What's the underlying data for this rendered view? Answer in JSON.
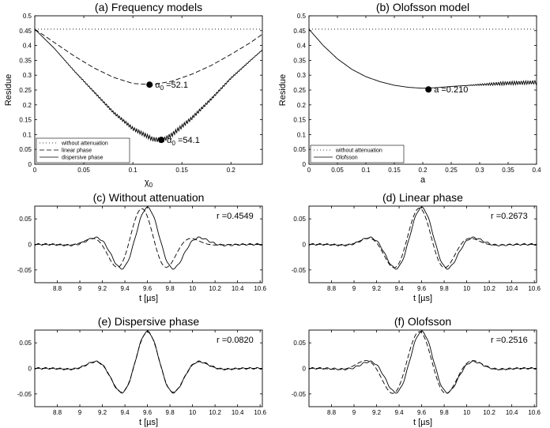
{
  "chart_data": [
    {
      "id": "a",
      "type": "line",
      "title": "(a) Frequency models",
      "xlabel": "χ0",
      "ylabel": "Residue",
      "xlim": [
        0,
        0.232
      ],
      "ylim": [
        0,
        0.5
      ],
      "xticks": [
        0,
        0.05,
        0.1,
        0.15,
        0.2
      ],
      "xtick_labels": [
        "0",
        "0.05",
        "0.1",
        "0.15",
        "0.2"
      ],
      "yticks": [
        0,
        0.05,
        0.1,
        0.15,
        0.2,
        0.25,
        0.3,
        0.35,
        0.4,
        0.45,
        0.5
      ],
      "ytick_labels": [
        "0",
        "0.05",
        "0.1",
        "0.15",
        "0.2",
        "0.25",
        "0.3",
        "0.35",
        "0.4",
        "0.45",
        "0.5"
      ],
      "legend": {
        "placement": "bottom-left",
        "entries": [
          "without attenuation",
          "linear phase",
          "dispersive phase"
        ]
      },
      "series": [
        {
          "name": "without attenuation",
          "style": "dotted",
          "x": [
            0,
            0.232
          ],
          "y": [
            0.455,
            0.455
          ]
        },
        {
          "name": "linear phase",
          "style": "dashed",
          "x": [
            0,
            0.02,
            0.04,
            0.06,
            0.08,
            0.1,
            0.12,
            0.14,
            0.16,
            0.18,
            0.2,
            0.22,
            0.232
          ],
          "y": [
            0.455,
            0.41,
            0.365,
            0.325,
            0.293,
            0.272,
            0.268,
            0.28,
            0.303,
            0.333,
            0.37,
            0.41,
            0.438
          ]
        },
        {
          "name": "dispersive phase",
          "style": "solid",
          "ripple": true,
          "x": [
            0,
            0.02,
            0.04,
            0.06,
            0.08,
            0.1,
            0.12,
            0.13,
            0.14,
            0.16,
            0.18,
            0.2,
            0.22,
            0.232
          ],
          "y": [
            0.455,
            0.39,
            0.315,
            0.245,
            0.175,
            0.12,
            0.085,
            0.08,
            0.1,
            0.155,
            0.22,
            0.29,
            0.35,
            0.385
          ]
        }
      ],
      "markers": [
        {
          "x": 0.117,
          "y": 0.268,
          "label": "α0 =52.1"
        },
        {
          "x": 0.129,
          "y": 0.082,
          "label": "α0 =54.1"
        }
      ]
    },
    {
      "id": "b",
      "type": "line",
      "title": "(b) Olofsson model",
      "xlabel": "a",
      "ylabel": "Residue",
      "xlim": [
        0,
        0.4
      ],
      "ylim": [
        0,
        0.5
      ],
      "xticks": [
        0,
        0.05,
        0.1,
        0.15,
        0.2,
        0.25,
        0.3,
        0.35,
        0.4
      ],
      "xtick_labels": [
        "0",
        "0.05",
        "0.1",
        "0.15",
        "0.2",
        "0.25",
        "0.3",
        "0.35",
        "0.4"
      ],
      "yticks": [
        0,
        0.05,
        0.1,
        0.15,
        0.2,
        0.25,
        0.3,
        0.35,
        0.4,
        0.45,
        0.5
      ],
      "ytick_labels": [
        "0",
        "0.05",
        "0.1",
        "0.15",
        "0.2",
        "0.25",
        "0.3",
        "0.35",
        "0.4",
        "0.45",
        "0.5"
      ],
      "legend": {
        "placement": "bottom-left",
        "entries": [
          "without attenuation",
          "Olofsson"
        ]
      },
      "series": [
        {
          "name": "without attenuation",
          "style": "dotted",
          "x": [
            0,
            0.4
          ],
          "y": [
            0.455,
            0.455
          ]
        },
        {
          "name": "Olofsson",
          "style": "solid",
          "ripple_from": 0.27,
          "x": [
            0,
            0.025,
            0.05,
            0.075,
            0.1,
            0.125,
            0.15,
            0.175,
            0.2,
            0.225,
            0.25,
            0.3,
            0.35,
            0.4
          ],
          "y": [
            0.455,
            0.4,
            0.355,
            0.32,
            0.295,
            0.278,
            0.266,
            0.259,
            0.256,
            0.258,
            0.262,
            0.268,
            0.273,
            0.276
          ]
        }
      ],
      "markers": [
        {
          "x": 0.21,
          "y": 0.252,
          "label": "a =0.210"
        }
      ]
    },
    {
      "id": "c",
      "type": "line",
      "title": "(c) Without attenuation",
      "xlabel": "t [µs]",
      "xlim": [
        8.6,
        10.62
      ],
      "ylim": [
        -0.075,
        0.075
      ],
      "xticks": [
        8.8,
        9,
        9.2,
        9.4,
        9.6,
        9.8,
        10,
        10.2,
        10.4,
        10.6
      ],
      "xtick_labels": [
        "8.8",
        "9",
        "9.2",
        "9.4",
        "9.6",
        "9.8",
        "10",
        "10.2",
        "10.4",
        "10.6"
      ],
      "yticks": [
        0.05,
        0,
        -0.05
      ],
      "ytick_labels": [
        "0.05",
        "0",
        "-0.05"
      ],
      "annotation": "r =0.4549",
      "measured": {
        "style": "solid",
        "mean": 9.6,
        "sigma": 0.26,
        "freq": 2.0,
        "amp": 0.072
      },
      "model": {
        "style": "dashed",
        "mean": 9.55,
        "sigma": 0.24,
        "freq": 2.1,
        "amp": 0.07
      }
    },
    {
      "id": "d",
      "type": "line",
      "title": "(d) Linear phase",
      "xlabel": "t [µs]",
      "xlim": [
        8.6,
        10.62
      ],
      "ylim": [
        -0.075,
        0.075
      ],
      "xticks": [
        8.8,
        9,
        9.2,
        9.4,
        9.6,
        9.8,
        10,
        10.2,
        10.4,
        10.6
      ],
      "xtick_labels": [
        "8.8",
        "9",
        "9.2",
        "9.4",
        "9.6",
        "9.8",
        "10",
        "10.2",
        "10.4",
        "10.6"
      ],
      "yticks": [
        0.05,
        0,
        -0.05
      ],
      "ytick_labels": [
        "0.05",
        "0",
        "-0.05"
      ],
      "annotation": "r =0.2673",
      "measured": {
        "style": "solid",
        "mean": 9.6,
        "sigma": 0.26,
        "freq": 2.0,
        "amp": 0.072
      },
      "model": {
        "style": "dashed",
        "mean": 9.58,
        "sigma": 0.25,
        "freq": 2.03,
        "amp": 0.071
      }
    },
    {
      "id": "e",
      "type": "line",
      "title": "(e) Dispersive phase",
      "xlabel": "t [µs]",
      "xlim": [
        8.6,
        10.62
      ],
      "ylim": [
        -0.075,
        0.075
      ],
      "xticks": [
        8.8,
        9,
        9.2,
        9.4,
        9.6,
        9.8,
        10,
        10.2,
        10.4,
        10.6
      ],
      "xtick_labels": [
        "8.8",
        "9",
        "9.2",
        "9.4",
        "9.6",
        "9.8",
        "10",
        "10.2",
        "10.4",
        "10.6"
      ],
      "yticks": [
        0.05,
        0,
        -0.05
      ],
      "ytick_labels": [
        "0.05",
        "0",
        "-0.05"
      ],
      "annotation": "r =0.0820",
      "measured": {
        "style": "solid",
        "mean": 9.6,
        "sigma": 0.26,
        "freq": 2.0,
        "amp": 0.072
      },
      "model": {
        "style": "dashed",
        "mean": 9.6,
        "sigma": 0.26,
        "freq": 2.0,
        "amp": 0.071
      }
    },
    {
      "id": "f",
      "type": "line",
      "title": "(f) Olofsson",
      "xlabel": "t [µs]",
      "xlim": [
        8.6,
        10.62
      ],
      "ylim": [
        -0.075,
        0.075
      ],
      "xticks": [
        8.8,
        9,
        9.2,
        9.4,
        9.6,
        9.8,
        10,
        10.2,
        10.4,
        10.6
      ],
      "xtick_labels": [
        "8.8",
        "9",
        "9.2",
        "9.4",
        "9.6",
        "9.8",
        "10",
        "10.2",
        "10.4",
        "10.6"
      ],
      "yticks": [
        0.05,
        0,
        -0.05
      ],
      "ytick_labels": [
        "0.05",
        "0",
        "-0.05"
      ],
      "annotation": "r =0.2516",
      "measured": {
        "style": "solid",
        "mean": 9.6,
        "sigma": 0.26,
        "freq": 2.0,
        "amp": 0.072
      },
      "model": {
        "style": "dashed",
        "mean": 9.58,
        "sigma": 0.28,
        "freq": 1.95,
        "amp": 0.072
      }
    }
  ]
}
